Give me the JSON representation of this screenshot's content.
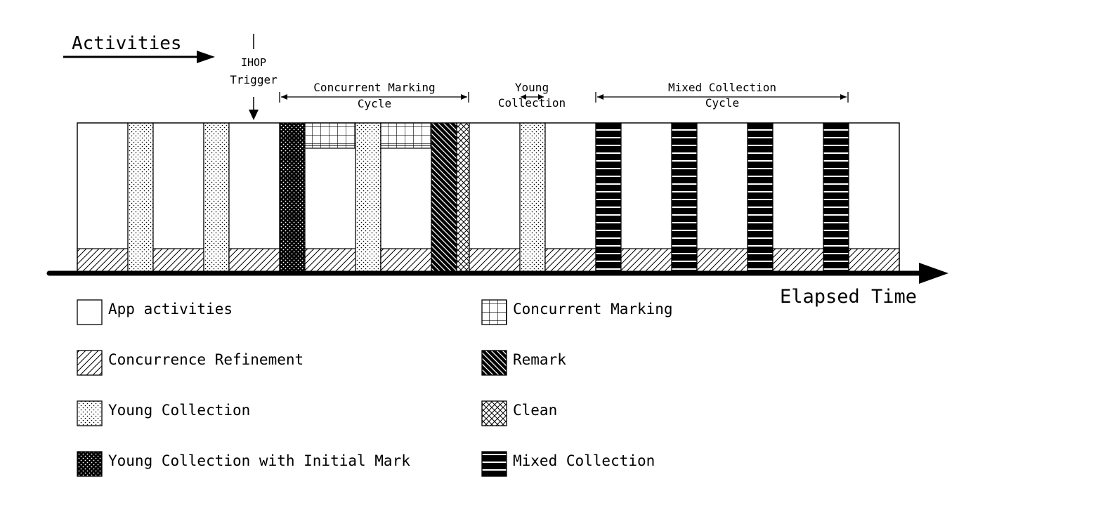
{
  "activities_label": "Activities",
  "ihop_trigger": [
    "IHOP",
    "Trigger"
  ],
  "elapsed_time": "Elapsed Time",
  "phases": [
    {
      "id": "concurrent-marking-cycle",
      "lines": [
        "Concurrent Marking",
        "Cycle"
      ]
    },
    {
      "id": "young-collection",
      "lines": [
        "Young",
        "Collection"
      ]
    },
    {
      "id": "mixed-collection-cycle",
      "lines": [
        "Mixed Collection",
        "Cycle"
      ]
    }
  ],
  "timeline": [
    {
      "type": "app"
    },
    {
      "type": "young"
    },
    {
      "type": "app"
    },
    {
      "type": "young"
    },
    {
      "type": "app"
    },
    {
      "type": "young-initial-mark"
    },
    {
      "type": "app",
      "concurrent_marking": true
    },
    {
      "type": "young"
    },
    {
      "type": "app",
      "concurrent_marking": true
    },
    {
      "type": "remark"
    },
    {
      "type": "clean"
    },
    {
      "type": "app"
    },
    {
      "type": "young"
    },
    {
      "type": "app"
    },
    {
      "type": "mixed"
    },
    {
      "type": "app"
    },
    {
      "type": "mixed"
    },
    {
      "type": "app"
    },
    {
      "type": "mixed"
    },
    {
      "type": "app"
    },
    {
      "type": "mixed"
    },
    {
      "type": "app"
    }
  ],
  "legend": [
    {
      "key": "app",
      "label": "App activities"
    },
    {
      "key": "refinement",
      "label": "Concurrence Refinement"
    },
    {
      "key": "young",
      "label": "Young Collection"
    },
    {
      "key": "young-initial-mark",
      "label": "Young Collection with Initial Mark"
    },
    {
      "key": "concurrent-marking",
      "label": "Concurrent Marking"
    },
    {
      "key": "remark",
      "label": "Remark"
    },
    {
      "key": "clean",
      "label": "Clean"
    },
    {
      "key": "mixed",
      "label": "Mixed Collection"
    }
  ]
}
